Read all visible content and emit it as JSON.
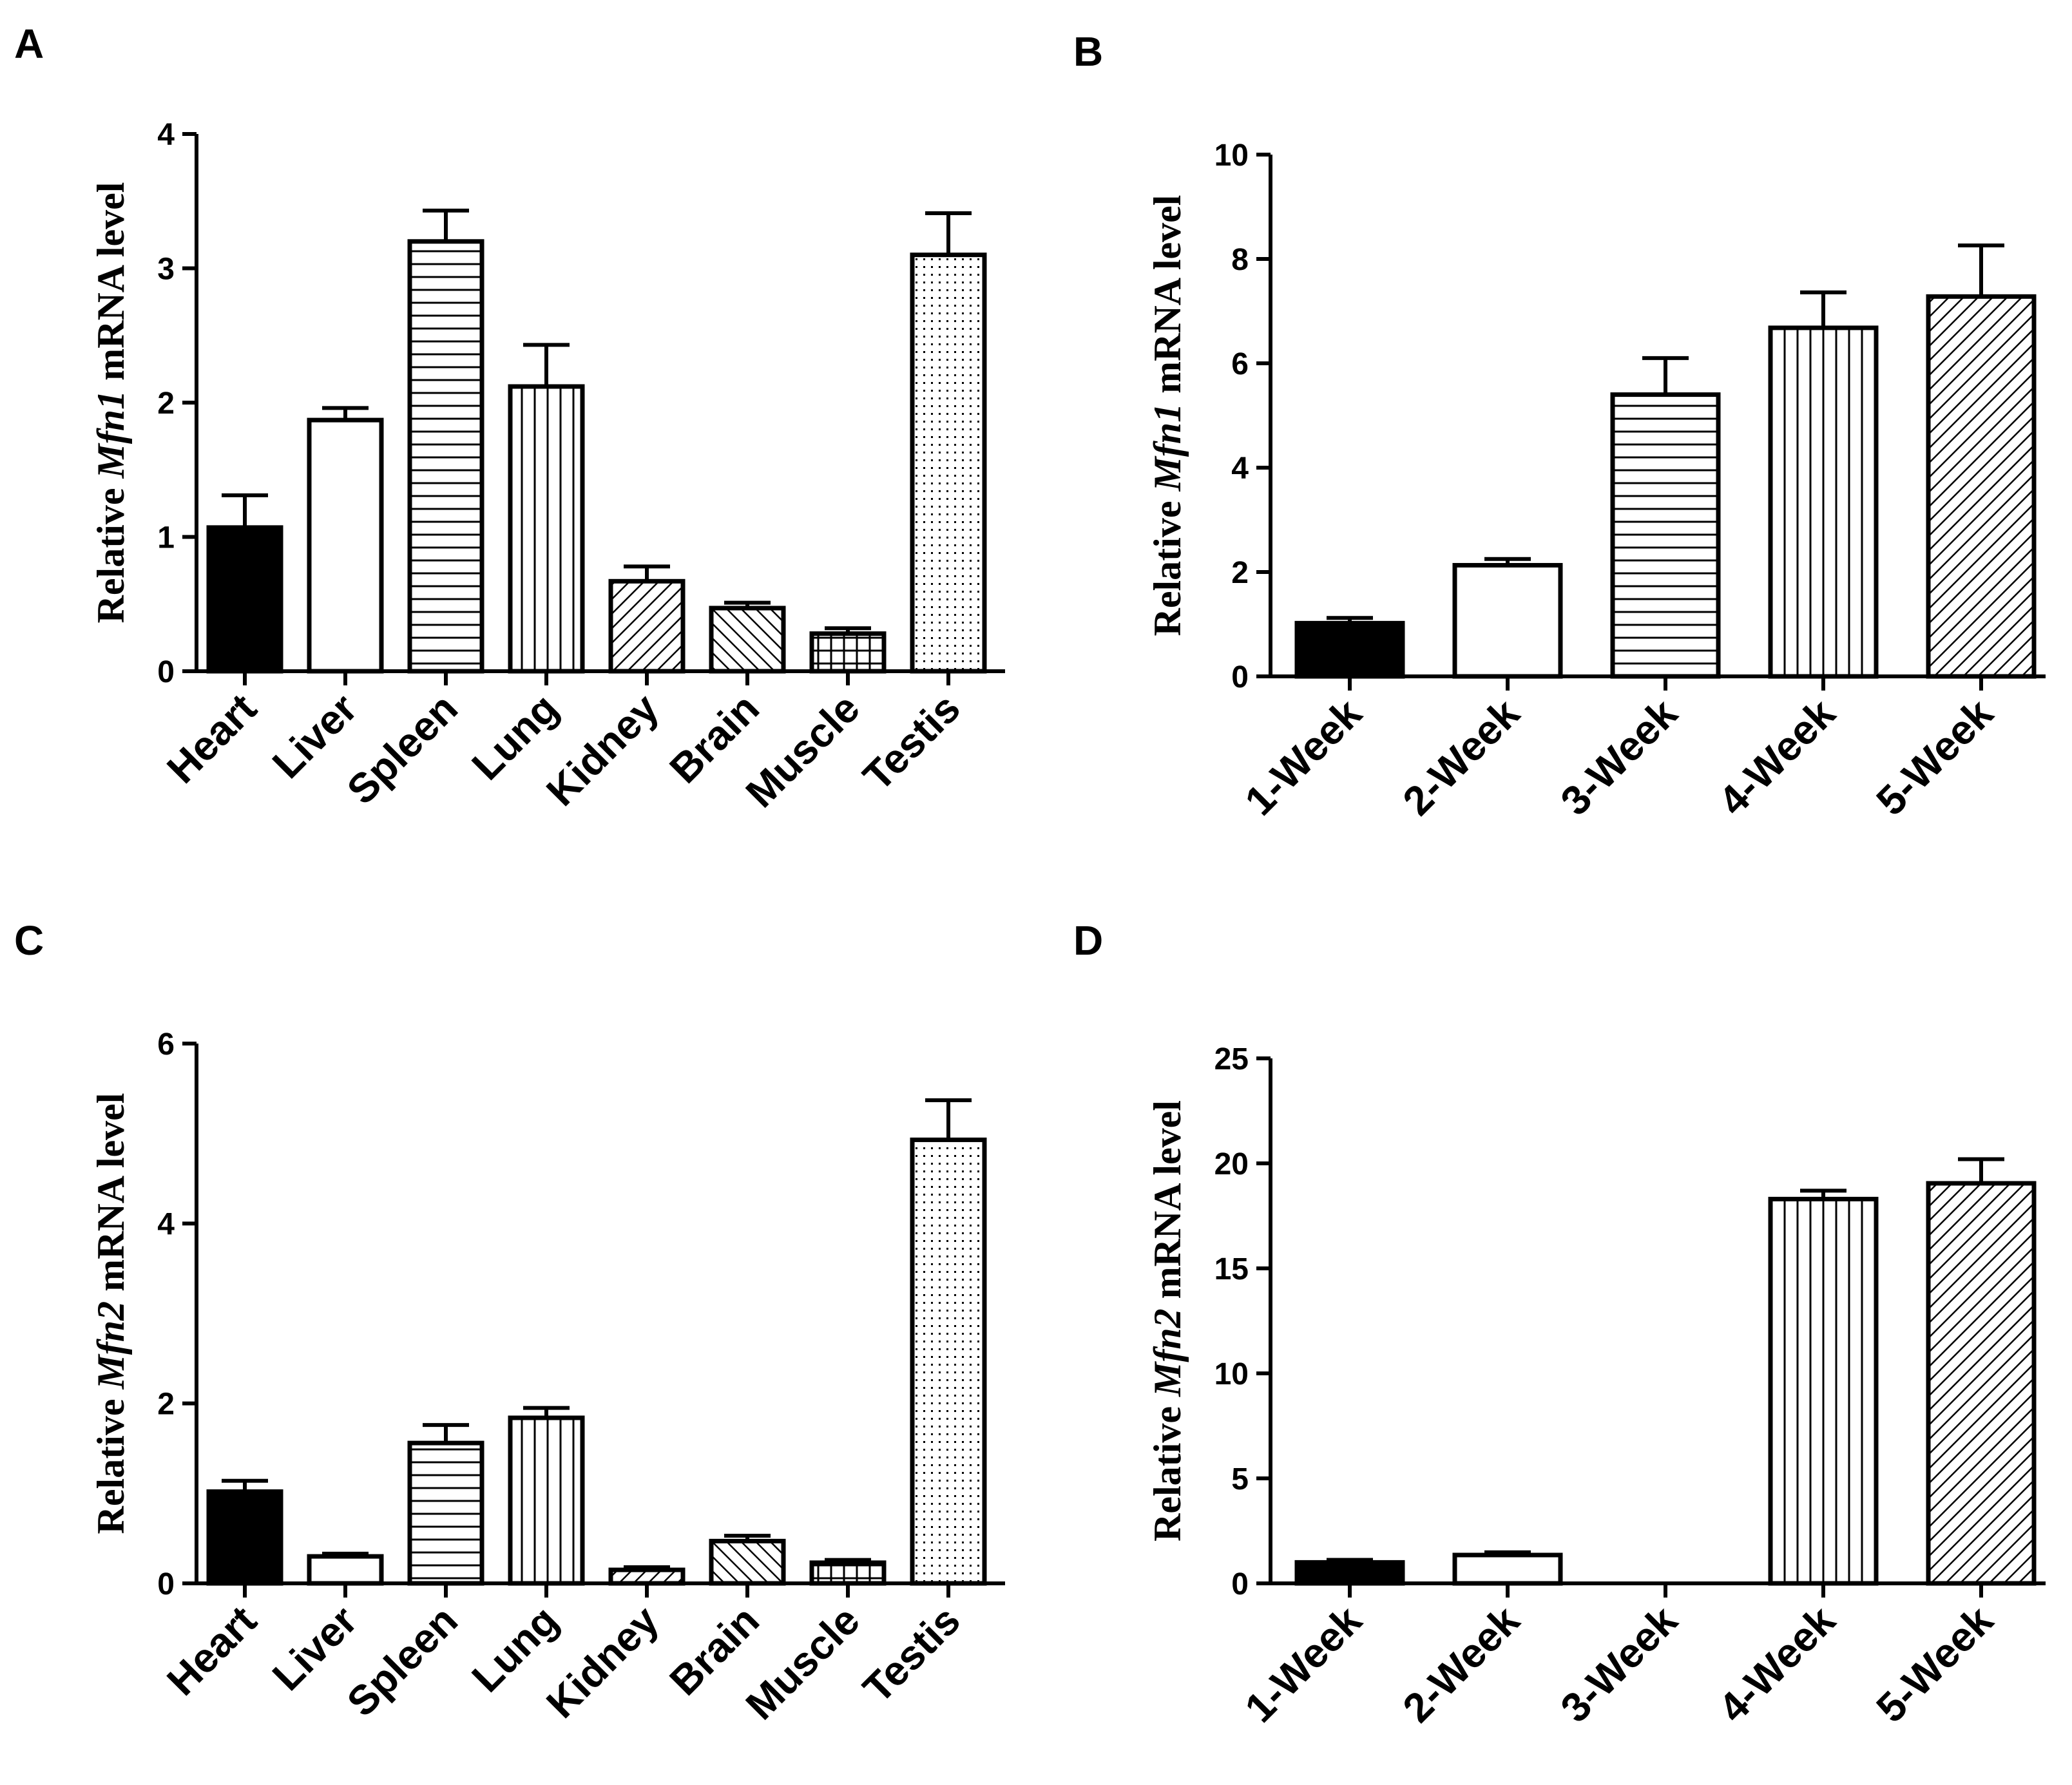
{
  "chart_data": [
    {
      "panel": "A",
      "type": "bar",
      "ylabel": {
        "prefix": "Relative ",
        "gene": "Mfn1",
        "suffix": " mRNA level"
      },
      "ylim": [
        0,
        4
      ],
      "yticks": [
        "0",
        "1",
        "2",
        "3",
        "4"
      ],
      "categories": [
        "Heart",
        "Liver",
        "Spleen",
        "Lung",
        "Kidney",
        "Brain",
        "Muscle",
        "Testis"
      ],
      "values": [
        1.07,
        1.87,
        3.2,
        2.12,
        0.67,
        0.47,
        0.28,
        3.1
      ],
      "errors": [
        0.24,
        0.09,
        0.23,
        0.31,
        0.11,
        0.04,
        0.04,
        0.31
      ],
      "patterns": [
        "solid",
        "white",
        "hlines",
        "vlines",
        "diag",
        "diag-back",
        "grid",
        "dots"
      ]
    },
    {
      "panel": "B",
      "type": "bar",
      "ylabel": {
        "prefix": "Relative ",
        "gene": "Mfn1",
        "suffix": " mRNA level"
      },
      "ylim": [
        0,
        10
      ],
      "yticks": [
        "0",
        "2",
        "4",
        "6",
        "8",
        "10"
      ],
      "categories": [
        "1-Week",
        "2-Week",
        "3-Week",
        "4-Week",
        "5-Week"
      ],
      "values": [
        1.02,
        2.13,
        5.4,
        6.68,
        7.28
      ],
      "errors": [
        0.1,
        0.12,
        0.7,
        0.68,
        0.98
      ],
      "patterns": [
        "solid",
        "white",
        "hlines",
        "vlines",
        "diag"
      ]
    },
    {
      "panel": "C",
      "type": "bar",
      "ylabel": {
        "prefix": "Relative ",
        "gene": "Mfn2",
        "suffix": " mRNA level"
      },
      "ylim": [
        0,
        6
      ],
      "yticks": [
        "0",
        "2",
        "4",
        "6"
      ],
      "categories": [
        "Heart",
        "Liver",
        "Spleen",
        "Lung",
        "Kidney",
        "Brain",
        "Muscle",
        "Testis"
      ],
      "values": [
        1.02,
        0.3,
        1.56,
        1.84,
        0.15,
        0.47,
        0.23,
        4.93
      ],
      "errors": [
        0.12,
        0.03,
        0.2,
        0.11,
        0.03,
        0.06,
        0.03,
        0.44
      ],
      "patterns": [
        "solid",
        "white",
        "hlines",
        "vlines",
        "diag",
        "diag-back",
        "grid",
        "dots"
      ]
    },
    {
      "panel": "D",
      "type": "bar",
      "ylabel": {
        "prefix": "Relative ",
        "gene": "Mfn2",
        "suffix": " mRNA level"
      },
      "ylim": [
        0,
        25
      ],
      "yticks": [
        "0",
        "5",
        "10",
        "15",
        "20",
        "25"
      ],
      "categories": [
        "1-Week",
        "2-Week",
        "3-Week",
        "4-Week",
        "5-Week"
      ],
      "values": [
        1.0,
        1.35,
        0,
        18.3,
        19.05
      ],
      "errors": [
        0.12,
        0.13,
        0,
        0.4,
        1.15
      ],
      "patterns": [
        "solid",
        "white",
        "hlines",
        "vlines",
        "diag"
      ]
    }
  ]
}
